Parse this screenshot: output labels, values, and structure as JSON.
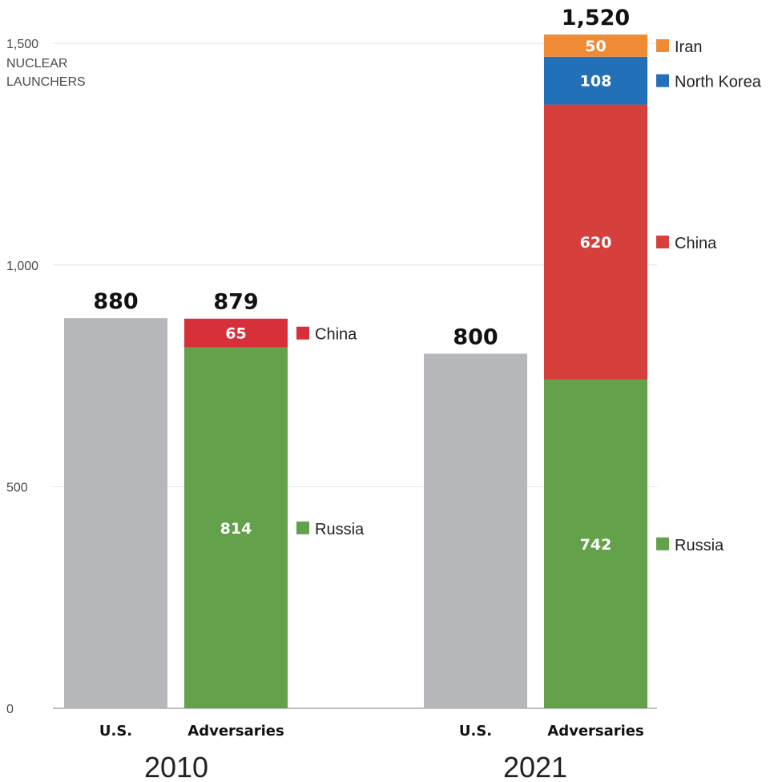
{
  "chart_data": {
    "type": "bar",
    "stacked": true,
    "ylabel": "NUCLEAR LAUNCHERS",
    "ylim": [
      0,
      1520
    ],
    "yticks": [
      {
        "value": 0,
        "label": "0"
      },
      {
        "value": 500,
        "label": "500"
      },
      {
        "value": 1000,
        "label": "1,000"
      },
      {
        "value": 1500,
        "label": "1,500"
      }
    ],
    "grid": true,
    "groups": [
      {
        "year": "2010",
        "bars": [
          {
            "category": "U.S.",
            "total_label": "880",
            "segments": [
              {
                "name": "U.S.",
                "value": 880,
                "color": "#b6b7bb",
                "label": "",
                "legend": false
              }
            ]
          },
          {
            "category": "Adversaries",
            "total_label": "879",
            "segments": [
              {
                "name": "Russia",
                "value": 814,
                "color": "#63a14b",
                "label": "814",
                "legend": true
              },
              {
                "name": "China",
                "value": 65,
                "color": "#d7303b",
                "label": "65",
                "legend": true
              }
            ]
          }
        ]
      },
      {
        "year": "2021",
        "bars": [
          {
            "category": "U.S.",
            "total_label": "800",
            "segments": [
              {
                "name": "U.S.",
                "value": 800,
                "color": "#b6b7bb",
                "label": "",
                "legend": false
              }
            ]
          },
          {
            "category": "Adversaries",
            "total_label": "1,520",
            "segments": [
              {
                "name": "Russia",
                "value": 742,
                "color": "#63a14b",
                "label": "742",
                "legend": true
              },
              {
                "name": "China",
                "value": 620,
                "color": "#d5403c",
                "label": "620",
                "legend": true
              },
              {
                "name": "North Korea",
                "value": 108,
                "color": "#2271b8",
                "label": "108",
                "legend": true
              },
              {
                "name": "Iran",
                "value": 50,
                "color": "#ef8b34",
                "label": "50",
                "legend": true
              }
            ]
          }
        ]
      }
    ]
  }
}
